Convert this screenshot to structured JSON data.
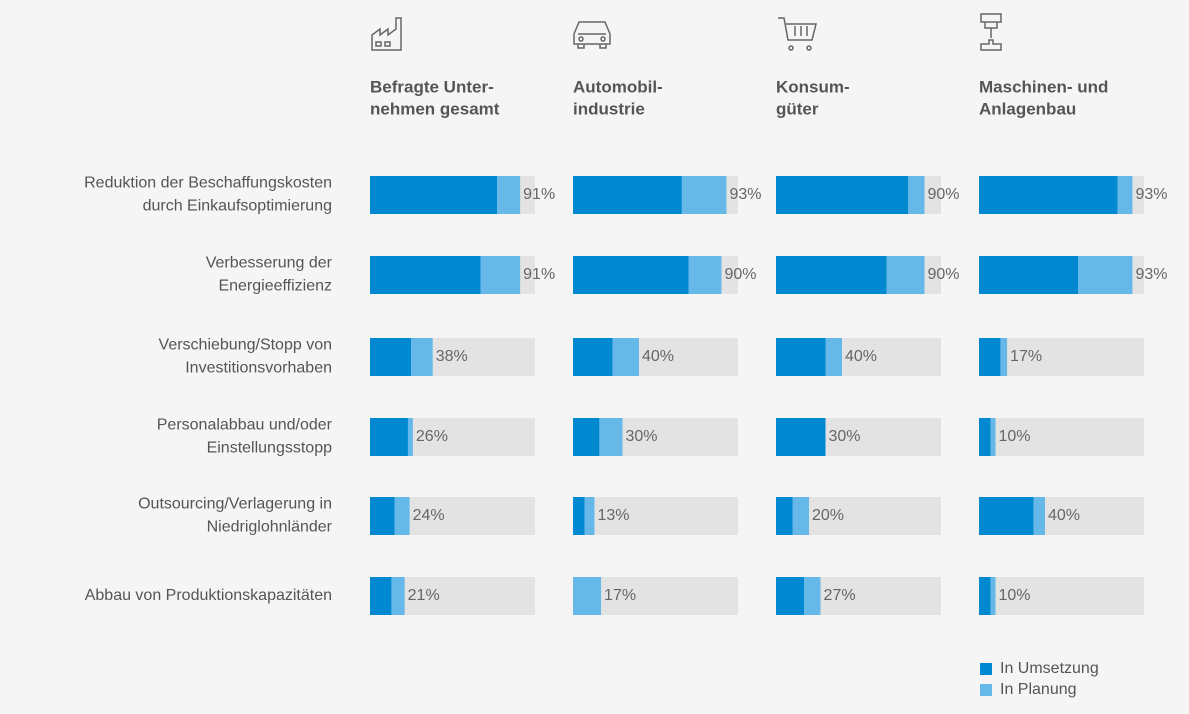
{
  "chart_data": {
    "type": "bar",
    "orientation": "horizontal",
    "stacked": true,
    "categories": [
      [
        "Reduktion der Beschaffungskosten",
        "durch Einkaufsoptimierung"
      ],
      [
        "Verbesserung der",
        "Energieeffizienz"
      ],
      [
        "Verschiebung/Stopp von",
        "Investitionsvorhaben"
      ],
      [
        "Personalabbau und/oder",
        "Einstellungsstopp"
      ],
      [
        "Outsourcing/Verlagerung in",
        "Niedriglohnländer"
      ],
      [
        "Abbau von Produktionskapazitäten"
      ]
    ],
    "series": [
      {
        "name": "In Umsetzung",
        "color": "#0088d1"
      },
      {
        "name": "In Planung",
        "color": "#66b8e8"
      }
    ],
    "track_color": "#e3e3e3",
    "xlim": [
      0,
      100
    ],
    "panels": [
      {
        "title": [
          "Befragte Unter-",
          "nehmen gesamt"
        ],
        "values": [
          [
            77,
            67,
            25,
            23,
            15,
            13
          ],
          [
            14,
            24,
            13,
            3,
            9,
            8
          ]
        ],
        "totals": [
          91,
          91,
          38,
          26,
          24,
          21
        ],
        "total_labels": [
          "91%",
          "91%",
          "38%",
          "26%",
          "24%",
          "21%"
        ]
      },
      {
        "title": [
          "Automobil-",
          "industrie"
        ],
        "values": [
          [
            66,
            70,
            24,
            16,
            7,
            0
          ],
          [
            27,
            20,
            16,
            14,
            6,
            17
          ]
        ],
        "totals": [
          93,
          90,
          40,
          30,
          13,
          17
        ],
        "total_labels": [
          "93%",
          "90%",
          "40%",
          "30%",
          "13%",
          "17%"
        ]
      },
      {
        "title": [
          "Konsum-",
          "güter"
        ],
        "values": [
          [
            80,
            67,
            30,
            30,
            10,
            17
          ],
          [
            10,
            23,
            10,
            0,
            10,
            10
          ]
        ],
        "totals": [
          90,
          90,
          40,
          30,
          20,
          27
        ],
        "total_labels": [
          "90%",
          "90%",
          "40%",
          "30%",
          "20%",
          "27%"
        ]
      },
      {
        "title": [
          "Maschinen- und",
          "Anlagenbau"
        ],
        "values": [
          [
            84,
            60,
            13,
            7,
            33,
            7
          ],
          [
            9,
            33,
            4,
            3,
            7,
            3
          ]
        ],
        "totals": [
          93,
          93,
          17,
          10,
          40,
          10
        ],
        "total_labels": [
          "93%",
          "93%",
          "17%",
          "10%",
          "40%",
          "10%"
        ]
      }
    ]
  }
}
